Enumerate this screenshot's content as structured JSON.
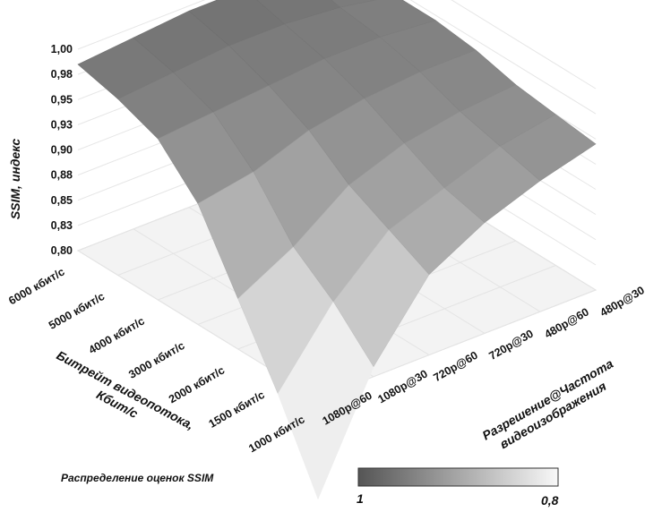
{
  "chart_data": {
    "type": "surface",
    "x_categories": [
      "1080p@60",
      "1080p@30",
      "720p@60",
      "720p@30",
      "480p@60",
      "480p@30"
    ],
    "y_categories": [
      "1000 кбит/с",
      "1500 кбит/с",
      "2000 кбит/с",
      "3000 кбит/с",
      "4000 кбит/с",
      "5000  кбит/с",
      "6000 кбит/с"
    ],
    "z_ticks": [
      "0,80",
      "0,83",
      "0,85",
      "0,88",
      "0,90",
      "0,93",
      "0,95",
      "0,98",
      "1,00"
    ],
    "zlim": [
      0.8,
      1.0
    ],
    "values": [
      [
        0.7,
        0.81,
        0.88,
        0.91,
        0.93,
        0.945
      ],
      [
        0.78,
        0.85,
        0.9,
        0.92,
        0.94,
        0.95
      ],
      [
        0.85,
        0.88,
        0.92,
        0.94,
        0.95,
        0.955
      ],
      [
        0.92,
        0.93,
        0.95,
        0.96,
        0.965,
        0.965
      ],
      [
        0.96,
        0.965,
        0.97,
        0.975,
        0.975,
        0.97
      ],
      [
        0.975,
        0.98,
        0.985,
        0.985,
        0.98,
        0.97
      ],
      [
        0.985,
        0.99,
        0.995,
        0.995,
        0.99,
        0.975
      ]
    ],
    "xlabel": "Разрешение@Частота видеоизображения",
    "xlabel_lines": [
      "Разрешение@Частота",
      "видеоизображения"
    ],
    "ylabel": "Битрейт видеопотока, Кбит/с",
    "ylabel_lines": [
      "Битрейт видеопотока,",
      "Кбит/с"
    ],
    "zlabel": "SSIM, индекс",
    "legend": {
      "title": "Распределение оценок SSIM",
      "min_label": "1",
      "max_label": "0,8",
      "color_high": "#555555",
      "color_low": "#f8f8f8"
    },
    "grid": true
  }
}
